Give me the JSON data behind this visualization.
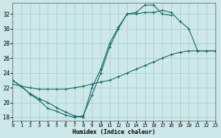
{
  "xlabel": "Humidex (Indice chaleur)",
  "bg_color": "#cde8e8",
  "grid_color": "#afd0d0",
  "line_color": "#1a6868",
  "xlim": [
    0,
    23
  ],
  "ylim": [
    17.5,
    33.5
  ],
  "xticks": [
    0,
    1,
    2,
    3,
    4,
    5,
    6,
    7,
    8,
    9,
    10,
    11,
    12,
    13,
    14,
    15,
    16,
    17,
    18,
    19,
    20,
    21,
    22,
    23
  ],
  "yticks": [
    18,
    20,
    22,
    24,
    26,
    28,
    30,
    32
  ],
  "curve1_x": [
    0,
    1,
    2,
    3,
    4,
    5,
    6,
    7,
    8,
    9,
    10,
    11,
    12,
    13,
    14,
    15,
    16,
    17,
    18
  ],
  "curve1_y": [
    23,
    22.2,
    21.1,
    20.3,
    19.2,
    18.8,
    18.3,
    18.0,
    18.2,
    21.0,
    24.0,
    27.5,
    30.0,
    32.0,
    32.2,
    33.2,
    33.2,
    32.0,
    31.8
  ],
  "curve2_x": [
    0,
    2,
    3,
    4,
    5,
    6,
    7,
    8,
    9,
    10,
    11,
    12,
    13,
    14,
    15,
    16,
    17,
    18,
    19,
    20,
    21,
    22,
    23
  ],
  "curve2_y": [
    23,
    21.2,
    20.5,
    20.0,
    19.3,
    18.7,
    18.2,
    18.0,
    22.0,
    24.5,
    28.0,
    30.2,
    32.0,
    32.0,
    32.2,
    32.2,
    32.5,
    32.2,
    31.0,
    30.0,
    27.0,
    27.0,
    27.0
  ],
  "curve3_x": [
    0,
    1,
    2,
    3,
    4,
    5,
    6,
    7,
    8,
    9,
    10,
    11,
    12,
    13,
    14,
    15,
    16,
    17,
    18,
    19,
    20,
    21,
    22,
    23
  ],
  "curve3_y": [
    22.5,
    22.2,
    22.0,
    21.8,
    21.8,
    21.8,
    21.8,
    22.0,
    22.2,
    22.5,
    22.8,
    23.0,
    23.5,
    24.0,
    24.5,
    25.0,
    25.5,
    26.0,
    26.5,
    26.8,
    27.0,
    27.0,
    27.0,
    27.0
  ]
}
